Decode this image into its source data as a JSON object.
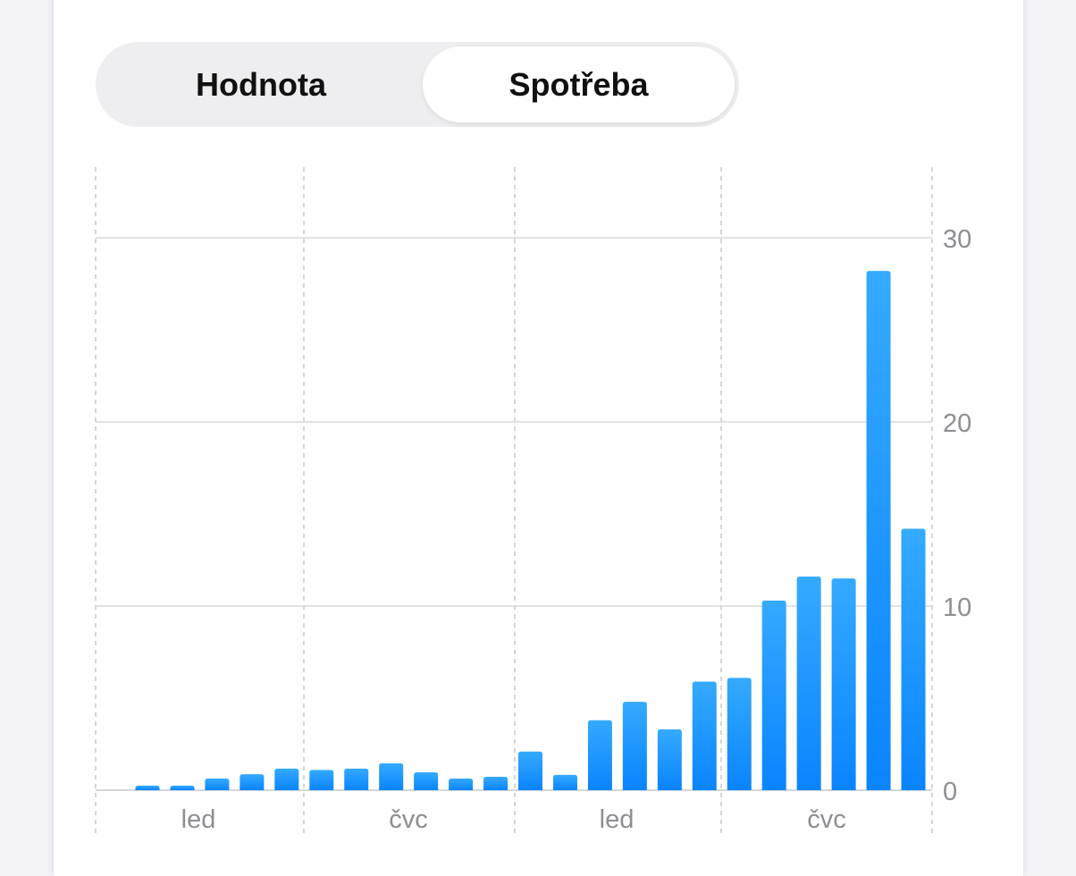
{
  "segmented_control": {
    "options": [
      "Hodnota",
      "Spotřeba"
    ],
    "selected": "Spotřeba"
  },
  "colors": {
    "bar_top": "#34aaff",
    "bar_bottom": "#0a84ff",
    "grid": "#d1d1d6"
  },
  "chart_data": {
    "type": "bar",
    "values": [
      0.25,
      0.25,
      0.63,
      0.87,
      1.17,
      1.1,
      1.17,
      1.46,
      0.97,
      0.63,
      0.73,
      2.1,
      0.83,
      3.8,
      4.8,
      3.3,
      5.9,
      6.1,
      10.3,
      11.6,
      11.5,
      28.2,
      14.2
    ],
    "x_tick_labels": [
      "led",
      "čvc",
      "led",
      "čvc"
    ],
    "y_ticks": [
      0,
      10,
      20,
      30
    ],
    "ylim": [
      0,
      30
    ],
    "y_axis_position": "right",
    "grid": true
  }
}
